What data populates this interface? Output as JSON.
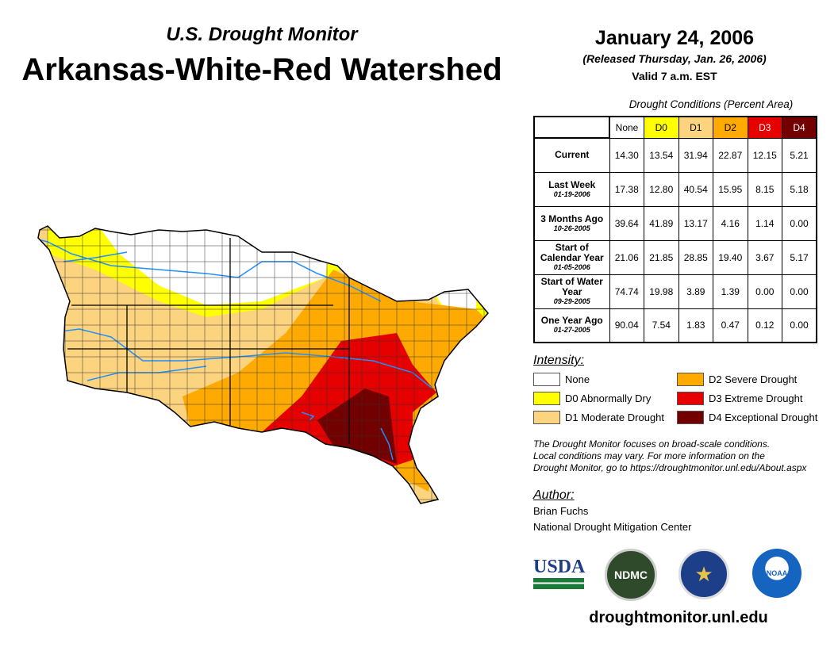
{
  "header": {
    "subtitle": "U.S. Drought Monitor",
    "title": "Arkansas-White-Red Watershed",
    "date": "January 24, 2006",
    "released": "(Released Thursday, Jan. 26, 2006)",
    "valid": "Valid 7 a.m. EST"
  },
  "table": {
    "title": "Drought Conditions (Percent Area)",
    "columns": [
      "None",
      "D0",
      "D1",
      "D2",
      "D3",
      "D4"
    ],
    "rows": [
      {
        "label": "Current",
        "date": "",
        "values": [
          "14.30",
          "13.54",
          "31.94",
          "22.87",
          "12.15",
          "5.21"
        ]
      },
      {
        "label": "Last Week",
        "date": "01-19-2006",
        "values": [
          "17.38",
          "12.80",
          "40.54",
          "15.95",
          "8.15",
          "5.18"
        ]
      },
      {
        "label": "3 Months Ago",
        "date": "10-26-2005",
        "values": [
          "39.64",
          "41.89",
          "13.17",
          "4.16",
          "1.14",
          "0.00"
        ]
      },
      {
        "label": "Start of Calendar Year",
        "date": "01-05-2006",
        "values": [
          "21.06",
          "21.85",
          "28.85",
          "19.40",
          "3.67",
          "5.17"
        ]
      },
      {
        "label": "Start of Water Year",
        "date": "09-29-2005",
        "values": [
          "74.74",
          "19.98",
          "3.89",
          "1.39",
          "0.00",
          "0.00"
        ]
      },
      {
        "label": "One Year Ago",
        "date": "01-27-2005",
        "values": [
          "90.04",
          "7.54",
          "1.83",
          "0.47",
          "0.12",
          "0.00"
        ]
      }
    ]
  },
  "legend": {
    "title": "Intensity:",
    "items": [
      {
        "label": "None",
        "color": "#ffffff"
      },
      {
        "label": "D0 Abnormally Dry",
        "color": "#ffff00"
      },
      {
        "label": "D1 Moderate Drought",
        "color": "#fcd37f"
      },
      {
        "label": "D2 Severe Drought",
        "color": "#ffaa00"
      },
      {
        "label": "D3 Extreme Drought",
        "color": "#e60000"
      },
      {
        "label": "D4 Exceptional Drought",
        "color": "#730000"
      }
    ]
  },
  "note": [
    "The Drought Monitor focuses on broad-scale conditions.",
    "Local conditions may vary. For more information on the",
    "Drought Monitor, go to https://droughtmonitor.unl.edu/About.aspx"
  ],
  "author": {
    "title": "Author:",
    "name": "Brian Fuchs",
    "org": "National Drought Mitigation Center"
  },
  "logos": {
    "usda": "USDA",
    "ndmc": "NDMC",
    "noaa": "NOAA"
  },
  "url": "droughtmonitor.unl.edu"
}
